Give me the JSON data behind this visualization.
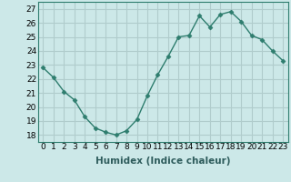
{
  "x": [
    0,
    1,
    2,
    3,
    4,
    5,
    6,
    7,
    8,
    9,
    10,
    11,
    12,
    13,
    14,
    15,
    16,
    17,
    18,
    19,
    20,
    21,
    22,
    23
  ],
  "y": [
    22.8,
    22.1,
    21.1,
    20.5,
    19.3,
    18.5,
    18.2,
    18.0,
    18.3,
    19.1,
    20.8,
    22.3,
    23.6,
    25.0,
    25.1,
    26.5,
    25.7,
    26.6,
    26.8,
    26.1,
    25.1,
    24.8,
    24.0,
    23.3
  ],
  "line_color": "#2e7d6e",
  "marker": "D",
  "marker_size": 2.5,
  "bg_color": "#cce8e8",
  "grid_color": "#b0cccc",
  "xlabel": "Humidex (Indice chaleur)",
  "ylabel": "",
  "xlim": [
    -0.5,
    23.5
  ],
  "ylim": [
    17.5,
    27.5
  ],
  "yticks": [
    18,
    19,
    20,
    21,
    22,
    23,
    24,
    25,
    26,
    27
  ],
  "xticks": [
    0,
    1,
    2,
    3,
    4,
    5,
    6,
    7,
    8,
    9,
    10,
    11,
    12,
    13,
    14,
    15,
    16,
    17,
    18,
    19,
    20,
    21,
    22,
    23
  ],
  "tick_label_size": 6.5,
  "xlabel_size": 7.5,
  "linewidth": 1.0
}
